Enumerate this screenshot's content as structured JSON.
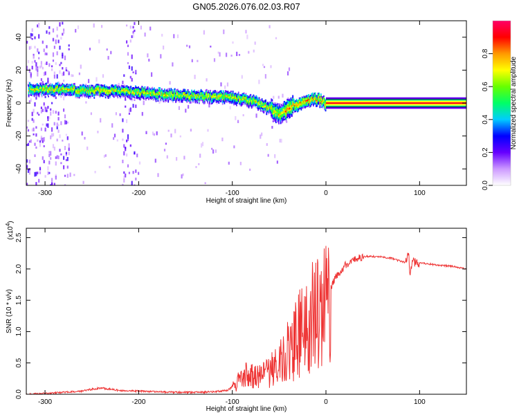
{
  "title": "GN05.2026.076.02.03.R07",
  "chart_data": [
    {
      "type": "heatmap",
      "xlabel": "Height of straight line (km)",
      "ylabel": "Frequency (Hz)",
      "xlim": [
        -320,
        150
      ],
      "ylim": [
        -50,
        50
      ],
      "xticks": [
        -300,
        -200,
        -100,
        0,
        100
      ],
      "yticks": [
        40,
        20,
        0,
        -20,
        -40
      ],
      "ridge_frequency": {
        "x": [
          -315,
          -300,
          -280,
          -260,
          -240,
          -220,
          -200,
          -180,
          -160,
          -140,
          -120,
          -100,
          -90,
          -80,
          -70,
          -60,
          -55,
          -50,
          -45,
          -40,
          -35,
          -30,
          -25,
          -20,
          -15,
          -10,
          -5,
          0,
          150
        ],
        "y": [
          9,
          9,
          9,
          8,
          8,
          7.5,
          7,
          6,
          5.5,
          5,
          4.5,
          4,
          3,
          2,
          0,
          -3,
          -5,
          -6,
          -5,
          -2,
          -1,
          0,
          1,
          2,
          3,
          3,
          2,
          0,
          0
        ]
      },
      "colorbar": {
        "label": "Normalized spectral amplitude",
        "range": [
          0,
          1
        ],
        "ticks": [
          "0.0",
          "0.2",
          "0.4",
          "0.6",
          "0.8"
        ],
        "colors": [
          "#ffffff",
          "#cc99ff",
          "#6600ff",
          "#0000ff",
          "#00ccff",
          "#00ff66",
          "#66ff00",
          "#ffff00",
          "#ff9900",
          "#ff0000",
          "#ff0066"
        ]
      }
    },
    {
      "type": "line",
      "xlabel": "Height of straight line (km)",
      "ylabel": "SNR (10 * v/v)",
      "yscale_label": "(x10",
      "yscale_exp": "4",
      "xlim": [
        -320,
        150
      ],
      "ylim": [
        0,
        2.65
      ],
      "xticks": [
        -300,
        -200,
        -100,
        0,
        100
      ],
      "yticks": [
        "0.0",
        "0.5",
        "1.0",
        "1.5",
        "2.0",
        "2.5"
      ],
      "color": "#ee3333",
      "series": [
        {
          "name": "SNR",
          "x": [
            -320,
            -300,
            -280,
            -260,
            -250,
            -240,
            -230,
            -220,
            -200,
            -180,
            -160,
            -140,
            -120,
            -105,
            -100,
            -95,
            -90,
            -85,
            -80,
            -75,
            -70,
            -65,
            -60,
            -55,
            -50,
            -45,
            -40,
            -35,
            -30,
            -25,
            -20,
            -15,
            -10,
            -5,
            0,
            5,
            10,
            15,
            20,
            25,
            30,
            35,
            40,
            50,
            60,
            70,
            80,
            85,
            88,
            90,
            92,
            95,
            100,
            110,
            120,
            130,
            140,
            150
          ],
          "y": [
            0.0,
            0.01,
            0.03,
            0.05,
            0.08,
            0.1,
            0.08,
            0.06,
            0.05,
            0.04,
            0.03,
            0.03,
            0.04,
            0.06,
            0.12,
            0.2,
            0.25,
            0.3,
            0.35,
            0.3,
            0.28,
            0.32,
            0.4,
            0.45,
            0.5,
            0.6,
            0.7,
            0.8,
            0.95,
            1.05,
            1.15,
            1.25,
            1.3,
            1.35,
            1.5,
            1.7,
            1.85,
            1.95,
            2.05,
            2.1,
            2.15,
            2.18,
            2.2,
            2.2,
            2.19,
            2.17,
            2.12,
            2.1,
            2.3,
            1.9,
            2.15,
            2.1,
            2.1,
            2.08,
            2.06,
            2.05,
            2.03,
            2.0
          ]
        }
      ]
    }
  ]
}
